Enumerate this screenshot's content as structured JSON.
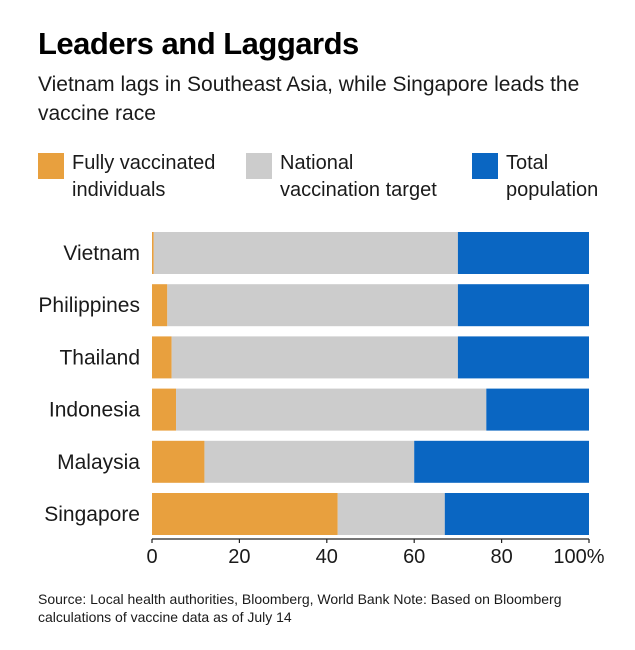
{
  "title": "Leaders and Laggards",
  "subtitle": "Vietnam lags in Southeast Asia, while Singapore leads the vaccine race",
  "legend": [
    {
      "label": "Fully vaccinated individuals",
      "color": "#E8A03E"
    },
    {
      "label": "National vaccination target",
      "color": "#CCCCCC"
    },
    {
      "label": "Total population",
      "color": "#0A66C2"
    }
  ],
  "chart_data": {
    "type": "bar",
    "orientation": "horizontal",
    "stacked": true,
    "categories": [
      "Vietnam",
      "Philippines",
      "Thailand",
      "Indonesia",
      "Malaysia",
      "Singapore"
    ],
    "series": [
      {
        "name": "Fully vaccinated individuals",
        "color": "#E8A03E",
        "values": [
          0.4,
          3.5,
          4.5,
          5.5,
          12,
          42.5
        ]
      },
      {
        "name": "National vaccination target",
        "color": "#CCCCCC",
        "values": [
          69.6,
          66.5,
          65.5,
          71,
          48,
          24.5
        ]
      },
      {
        "name": "Total population",
        "color": "#0A66C2",
        "values": [
          30,
          30,
          30,
          23.5,
          40,
          33
        ]
      }
    ],
    "xticks": [
      "0",
      "20",
      "40",
      "60",
      "80",
      "100%"
    ],
    "xtick_values": [
      0,
      20,
      40,
      60,
      80,
      100
    ],
    "xlim": [
      0,
      100
    ],
    "grid": false,
    "legend_position": "top"
  },
  "source": "Source: Local health authorities, Bloomberg, World Bank Note: Based on Bloomberg calculations of vaccine data as of July 14"
}
